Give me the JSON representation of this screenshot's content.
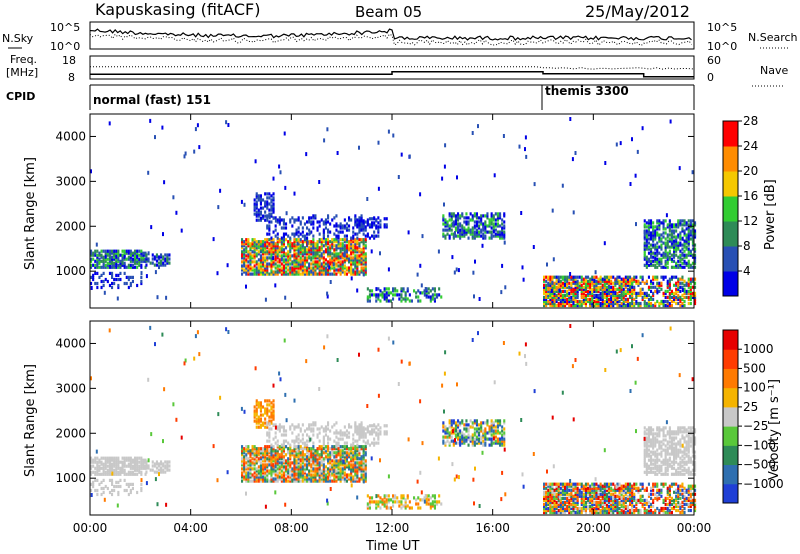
{
  "header": {
    "station": "Kapuskasing (fitACF)",
    "beam": "Beam 05",
    "date": "25/May/2012"
  },
  "noise_panel": {
    "left_label": "N.Sky",
    "left_ticks": [
      "10^5",
      "10^0"
    ],
    "right_label": "N.Search",
    "right_ticks": [
      "10^5",
      "10^0"
    ]
  },
  "freq_panel": {
    "left_label_1": "Freq.",
    "left_label_2": "[MHz]",
    "left_ticks": [
      "18",
      "8"
    ],
    "right_label": "Nave",
    "right_ticks": [
      "60",
      "0"
    ]
  },
  "cpid_panel": {
    "label": "CPID",
    "modes": [
      {
        "name": "normal (fast) 151",
        "start_hour": 0
      },
      {
        "name": "themis 3300",
        "start_hour": 18
      }
    ]
  },
  "chart_data": [
    {
      "type": "heatmap",
      "title": "",
      "xlabel": "",
      "ylabel": "Slant Range [km]",
      "x_ticks": [
        "00:00",
        "04:00",
        "08:00",
        "12:00",
        "16:00",
        "20:00",
        "00:00"
      ],
      "y_ticks": [
        "1000",
        "2000",
        "3000",
        "4000"
      ],
      "xlim_hours": [
        0,
        24
      ],
      "ylim_km": [
        180,
        4500
      ],
      "colorbar_label": "Power [dB]",
      "colorbar_ticks": [
        "4",
        "8",
        "12",
        "16",
        "20",
        "24",
        "28"
      ],
      "colorbar_colors": [
        "#0000e6",
        "#2850b4",
        "#2e8b57",
        "#32cd32",
        "#f5c800",
        "#ff8c00",
        "#ff0000"
      ]
    },
    {
      "type": "heatmap",
      "title": "",
      "xlabel": "Time UT",
      "ylabel": "Slant Range [km]",
      "x_ticks": [
        "00:00",
        "04:00",
        "08:00",
        "12:00",
        "16:00",
        "20:00",
        "00:00"
      ],
      "y_ticks": [
        "1000",
        "2000",
        "3000",
        "4000"
      ],
      "xlim_hours": [
        0,
        24
      ],
      "ylim_km": [
        180,
        4500
      ],
      "colorbar_label": "Velocity [m s⁻¹]",
      "colorbar_ticks": [
        "1000",
        "500",
        "100",
        "25",
        "−25",
        "−100",
        "−500",
        "−1000"
      ],
      "colorbar_colors": [
        "#1f3fd6",
        "#2e6fb0",
        "#2e8b57",
        "#59c83a",
        "#c8c8c8",
        "#f5b400",
        "#ff7a00",
        "#ff3c00",
        "#e60000"
      ]
    }
  ]
}
